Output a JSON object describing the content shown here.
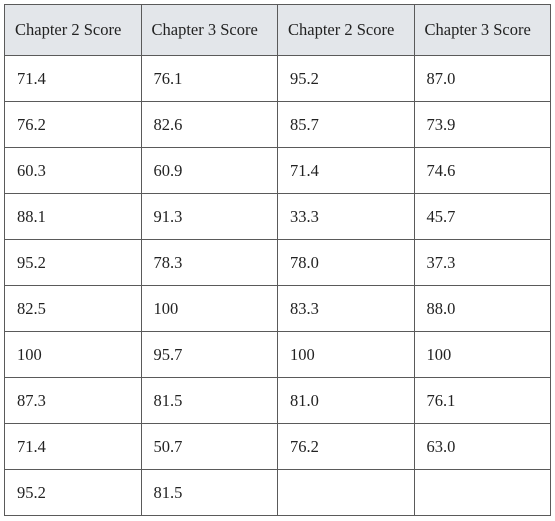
{
  "table": {
    "headers": [
      "Chapter 2 Score",
      "Chapter 3 Score",
      "Chapter 2 Score",
      "Chapter 3 Score"
    ],
    "rows": [
      [
        "71.4",
        "76.1",
        "95.2",
        "87.0"
      ],
      [
        "76.2",
        "82.6",
        "85.7",
        "73.9"
      ],
      [
        "60.3",
        "60.9",
        "71.4",
        "74.6"
      ],
      [
        "88.1",
        "91.3",
        "33.3",
        "45.7"
      ],
      [
        "95.2",
        "78.3",
        "78.0",
        "37.3"
      ],
      [
        "82.5",
        "100",
        "83.3",
        "88.0"
      ],
      [
        "100",
        "95.7",
        "100",
        "100"
      ],
      [
        "87.3",
        "81.5",
        "81.0",
        "76.1"
      ],
      [
        "71.4",
        "50.7",
        "76.2",
        "63.0"
      ],
      [
        "95.2",
        "81.5",
        "",
        ""
      ]
    ]
  }
}
